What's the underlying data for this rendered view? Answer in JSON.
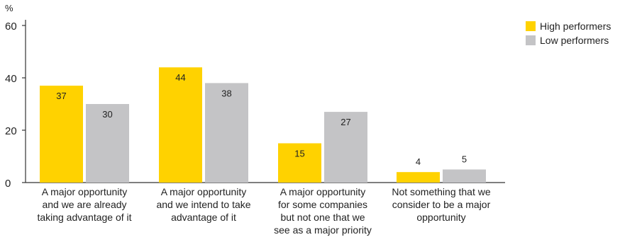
{
  "chart_data": {
    "type": "bar",
    "ylabel": "%",
    "ylim": [
      0,
      60
    ],
    "yticks": [
      0,
      20,
      40,
      60
    ],
    "grid": false,
    "legend_position": "top-right",
    "categories": [
      [
        "A major opportunity",
        "and we are already",
        "taking advantage of it"
      ],
      [
        "A major opportunity",
        "and we intend to take",
        "advantage of it"
      ],
      [
        "A major opportunity",
        "for some companies",
        "but not one that we",
        "see as a major priority"
      ],
      [
        "Not something that we",
        "consider to be a major",
        "opportunity"
      ]
    ],
    "series": [
      {
        "name": "High performers",
        "color": "#FFD200",
        "values": [
          37,
          44,
          15,
          4
        ]
      },
      {
        "name": "Low performers",
        "color": "#C4C4C6",
        "values": [
          30,
          38,
          27,
          5
        ]
      }
    ]
  }
}
